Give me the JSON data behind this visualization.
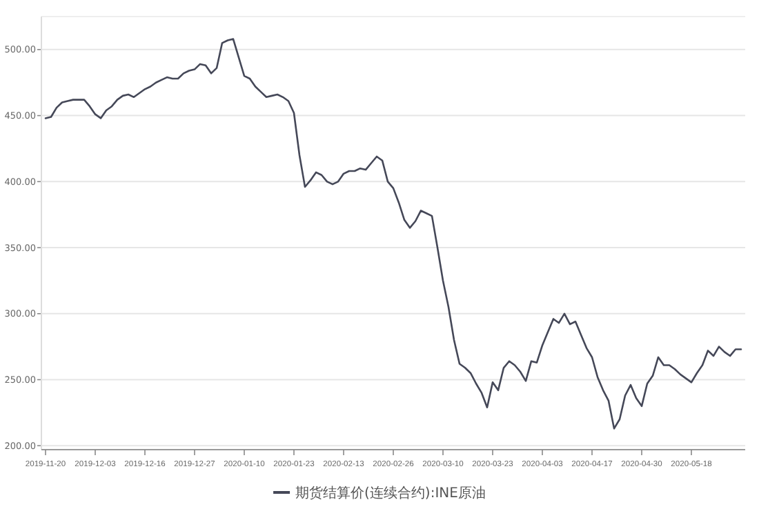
{
  "chart_data": {
    "type": "line",
    "categories": [
      "2019-11-20",
      null,
      null,
      null,
      null,
      null,
      null,
      null,
      null,
      "2019-12-03",
      null,
      null,
      null,
      null,
      null,
      null,
      null,
      null,
      "2019-12-16",
      null,
      null,
      null,
      null,
      null,
      null,
      null,
      null,
      "2019-12-27",
      null,
      null,
      null,
      null,
      null,
      null,
      null,
      null,
      "2020-01-10",
      null,
      null,
      null,
      null,
      null,
      null,
      null,
      null,
      "2020-01-23",
      null,
      null,
      null,
      null,
      null,
      null,
      null,
      null,
      "2020-02-13",
      null,
      null,
      null,
      null,
      null,
      null,
      null,
      null,
      "2020-02-26",
      null,
      null,
      null,
      null,
      null,
      null,
      null,
      null,
      "2020-03-10",
      null,
      null,
      null,
      null,
      null,
      null,
      null,
      null,
      "2020-03-23",
      null,
      null,
      null,
      null,
      null,
      null,
      null,
      null,
      "2020-04-03",
      null,
      null,
      null,
      null,
      null,
      null,
      null,
      null,
      "2020-04-17",
      null,
      null,
      null,
      null,
      null,
      null,
      null,
      null,
      "2020-04-30",
      null,
      null,
      null,
      null,
      null,
      null,
      null,
      null,
      "2020-05-18",
      null,
      null,
      null,
      null,
      null,
      null,
      null,
      null,
      null
    ],
    "series": [
      {
        "name": "期货结算价(连续合约):INE原油",
        "color": "#454858",
        "values": [
          448,
          449,
          456,
          460,
          461,
          462,
          462,
          462,
          457,
          451,
          448,
          454,
          457,
          462,
          465,
          466,
          464,
          467,
          470,
          472,
          475,
          477,
          479,
          478,
          478,
          482,
          484,
          485,
          489,
          488,
          482,
          486,
          505,
          507,
          508,
          494,
          480,
          478,
          472,
          468,
          464,
          465,
          466,
          464,
          461,
          452,
          420,
          396,
          401,
          407,
          405,
          400,
          398,
          400,
          406,
          408,
          408,
          410,
          409,
          414,
          419,
          416,
          400,
          395,
          384,
          371,
          365,
          370,
          378,
          376,
          374,
          350,
          325,
          305,
          280,
          262,
          259,
          255,
          247,
          240,
          229,
          248,
          242,
          259,
          264,
          261,
          256,
          249,
          264,
          263,
          276,
          286,
          296,
          293,
          300,
          292,
          294,
          284,
          274,
          267,
          252,
          242,
          234,
          213,
          220,
          238,
          246,
          236,
          230,
          247,
          253,
          267,
          261,
          261,
          258,
          254,
          251,
          248,
          255,
          261,
          272,
          268,
          275,
          271,
          268,
          273,
          273
        ]
      }
    ],
    "ylim": [
      197,
      525
    ],
    "yticks": [
      {
        "value": 200,
        "label": "200.00"
      },
      {
        "value": 250,
        "label": "250.00"
      },
      {
        "value": 300,
        "label": "300.00"
      },
      {
        "value": 350,
        "label": "350.00"
      },
      {
        "value": 400,
        "label": "400.00"
      },
      {
        "value": 450,
        "label": "450.00"
      },
      {
        "value": 500,
        "label": "500.00"
      }
    ],
    "grid": "y",
    "legend": "bottom",
    "marker": "none",
    "line_style": "solid"
  }
}
